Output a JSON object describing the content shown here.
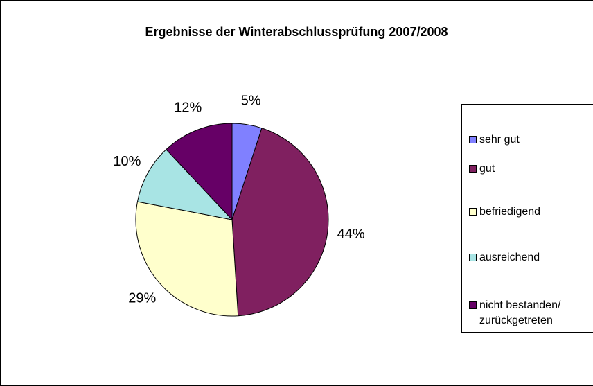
{
  "chart_data": {
    "type": "pie",
    "title": "Ergebnisse der Winterabschlussprüfung 2007/2008",
    "categories": [
      "sehr gut",
      "gut",
      "befriedigend",
      "ausreichend",
      "nicht bestanden/ zurückgetreten"
    ],
    "values": [
      5,
      44,
      29,
      10,
      12
    ],
    "value_labels": [
      "5%",
      "44%",
      "29%",
      "10%",
      "12%"
    ],
    "colors": [
      "#8080ff",
      "#802060",
      "#ffffcc",
      "#a8e4e4",
      "#660066"
    ],
    "legend": "right"
  }
}
